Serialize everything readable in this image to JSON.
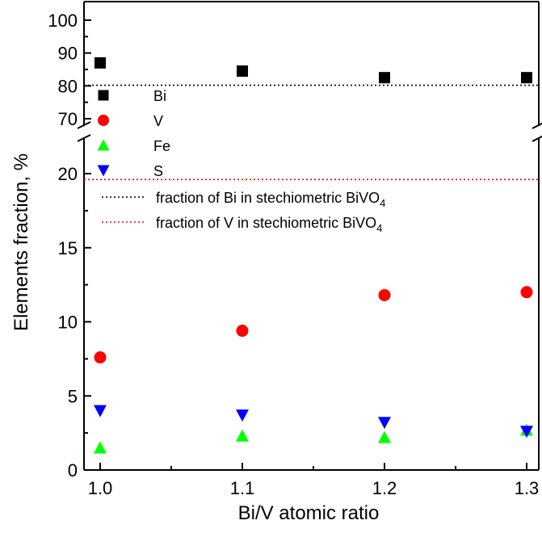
{
  "chart_data": {
    "type": "scatter",
    "xlabel": "Bi/V atomic ratio",
    "ylabel": "Elements fraction, %",
    "xlim": [
      1.0,
      1.3
    ],
    "ylim_upper": [
      65,
      100
    ],
    "ylim_lower": [
      0,
      22
    ],
    "axis_break": "between 22 and 65",
    "x_ticks": [
      "1.0",
      "1.1",
      "1.2",
      "1.3"
    ],
    "y_ticks_upper": [
      "70",
      "80",
      "90",
      "100"
    ],
    "y_ticks_lower": [
      "0",
      "5",
      "10",
      "15",
      "20"
    ],
    "series": [
      {
        "name": "Bi",
        "marker": "square",
        "color": "#000000",
        "x": [
          1.0,
          1.1,
          1.2,
          1.3
        ],
        "y": [
          87,
          84.5,
          82.5,
          82.5
        ]
      },
      {
        "name": "V",
        "marker": "circle",
        "color": "#ff0000",
        "x": [
          1.0,
          1.1,
          1.2,
          1.3
        ],
        "y": [
          7.6,
          9.4,
          11.8,
          12.0
        ]
      },
      {
        "name": "Fe",
        "marker": "triangle-up",
        "color": "#00ff00",
        "x": [
          1.0,
          1.1,
          1.2,
          1.3
        ],
        "y": [
          1.5,
          2.3,
          2.2,
          2.7
        ]
      },
      {
        "name": "S",
        "marker": "triangle-down",
        "color": "#0000ff",
        "x": [
          1.0,
          1.1,
          1.2,
          1.3
        ],
        "y": [
          4.0,
          3.7,
          3.2,
          2.6
        ]
      }
    ],
    "reference_lines": [
      {
        "label_prefix": "fraction of Bi in stechiometric BiVO",
        "subscript": "4",
        "y": 80.2,
        "color": "#000000",
        "style": "dotted"
      },
      {
        "label_prefix": "fraction of V in stechiometric BiVO",
        "subscript": "4",
        "y": 19.6,
        "color": "#ff0000",
        "style": "dotted"
      }
    ],
    "legend_position": "top-left",
    "grid": false
  }
}
